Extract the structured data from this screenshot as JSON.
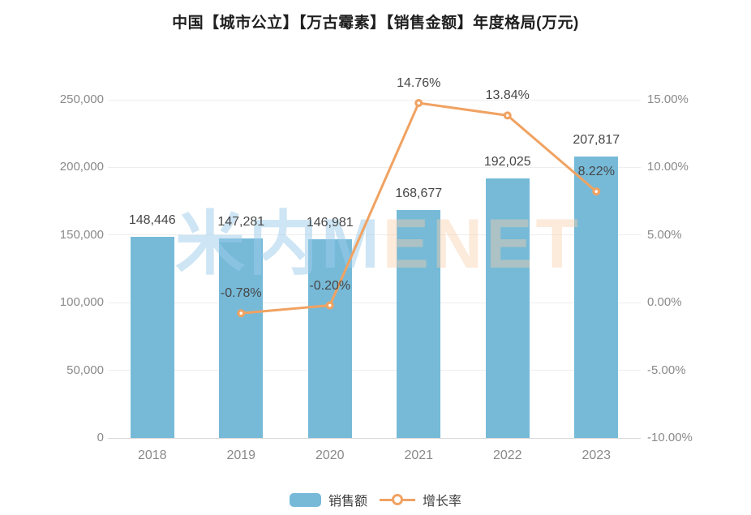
{
  "title": "中国【城市公立】【万古霉素】【销售金额】年度格局(万元)",
  "watermark": {
    "part_blue": "米内M",
    "part_orange": "ENET"
  },
  "colors": {
    "bar": "#76BAD8",
    "line": "#F0A262",
    "grid": "#eeeeee",
    "axis_baseline": "#d8d8d8",
    "tick_text": "#8a8a8a",
    "data_label_text": "#474747",
    "title_text": "#1f1f1f"
  },
  "legend": {
    "items": [
      {
        "label": "销售额",
        "type": "bar"
      },
      {
        "label": "增长率",
        "type": "line"
      }
    ]
  },
  "chart_data": {
    "type": "bar+line combo",
    "title": "中国【城市公立】【万古霉素】【销售金额】年度格局(万元)",
    "categories": [
      "2018",
      "2019",
      "2020",
      "2021",
      "2022",
      "2023"
    ],
    "series": [
      {
        "name": "销售额",
        "type": "bar",
        "axis": "left",
        "values": [
          148446,
          147281,
          146981,
          168677,
          192025,
          207817
        ],
        "labels": [
          "148,446",
          "147,281",
          "146,981",
          "168,677",
          "192,025",
          "207,817"
        ]
      },
      {
        "name": "增长率",
        "type": "line",
        "axis": "right",
        "values_percent": [
          null,
          -0.78,
          -0.2,
          14.76,
          13.84,
          8.22
        ],
        "labels": [
          "",
          "-0.78%",
          "-0.20%",
          "14.76%",
          "13.84%",
          "8.22%"
        ]
      }
    ],
    "y_axis_left": {
      "min": 0,
      "max": 250000,
      "ticks": [
        0,
        50000,
        100000,
        150000,
        200000,
        250000
      ],
      "tick_labels": [
        "0",
        "50,000",
        "100,000",
        "150,000",
        "200,000",
        "250,000"
      ]
    },
    "y_axis_right": {
      "min": -10,
      "max": 15,
      "ticks": [
        -10,
        -5,
        0,
        5,
        10,
        15
      ],
      "tick_labels": [
        "-10.00%",
        "-5.00%",
        "0.00%",
        "5.00%",
        "10.00%",
        "15.00%"
      ]
    },
    "grid": true,
    "legend_position": "bottom"
  }
}
